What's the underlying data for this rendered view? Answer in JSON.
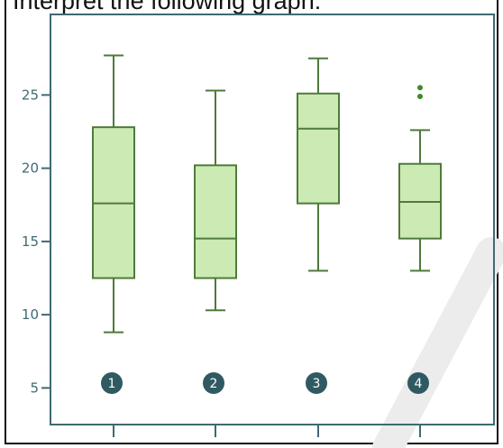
{
  "question": "Interpret the following graph:",
  "colors": {
    "box_fill": "#ccebb4",
    "box_stroke": "#4f7a3a",
    "axis": "#3f6a72",
    "badge": "#2f5a62",
    "outlier": "#3f8a2a",
    "watermark": "#e6e6e6"
  },
  "chart_data": {
    "type": "box",
    "title": "",
    "xlabel": "",
    "ylabel": "",
    "ylim": [
      2.5,
      30.5
    ],
    "yticks": [
      5,
      10,
      15,
      20,
      25
    ],
    "categories": [
      "1",
      "2",
      "3",
      "4"
    ],
    "boxes": [
      {
        "label": "1",
        "whisker_low": 8.8,
        "q1": 12.5,
        "median": 17.6,
        "q3": 22.8,
        "whisker_high": 27.7,
        "outliers": []
      },
      {
        "label": "2",
        "whisker_low": 10.3,
        "q1": 12.5,
        "median": 15.2,
        "q3": 20.2,
        "whisker_high": 25.3,
        "outliers": []
      },
      {
        "label": "3",
        "whisker_low": 13.0,
        "q1": 17.6,
        "median": 22.7,
        "q3": 25.1,
        "whisker_high": 27.5,
        "outliers": []
      },
      {
        "label": "4",
        "whisker_low": 13.0,
        "q1": 15.2,
        "median": 17.7,
        "q3": 20.3,
        "whisker_high": 22.6,
        "outliers": [
          24.9,
          25.5
        ]
      }
    ],
    "grid": false,
    "legend": "none"
  }
}
